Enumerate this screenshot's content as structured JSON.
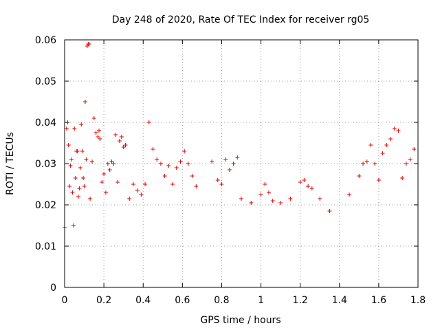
{
  "chart_data": {
    "type": "scatter",
    "title": "Day 248 of 2020, Rate Of TEC Index for receiver rg05",
    "xlabel": "GPS time / hours",
    "ylabel": "ROTI / TECUs",
    "xlim": [
      0,
      1.8
    ],
    "ylim": [
      0,
      0.06
    ],
    "x_ticks": [
      "0",
      "0.2",
      "0.4",
      "0.6",
      "0.8",
      "1",
      "1.2",
      "1.4",
      "1.6",
      "1.8"
    ],
    "y_ticks": [
      "0",
      "0.01",
      "0.02",
      "0.03",
      "0.04",
      "0.05",
      "0.06"
    ],
    "grid": true,
    "marker": "plus",
    "series": [
      {
        "color": "#e00000",
        "points": [
          [
            0.0,
            0.0145
          ],
          [
            0.01,
            0.0385
          ],
          [
            0.015,
            0.04
          ],
          [
            0.02,
            0.0345
          ],
          [
            0.025,
            0.0245
          ],
          [
            0.03,
            0.0295
          ],
          [
            0.035,
            0.031
          ],
          [
            0.04,
            0.023
          ],
          [
            0.045,
            0.015
          ],
          [
            0.05,
            0.0385
          ],
          [
            0.055,
            0.0265
          ],
          [
            0.06,
            0.033
          ],
          [
            0.065,
            0.033
          ],
          [
            0.07,
            0.022
          ],
          [
            0.075,
            0.024
          ],
          [
            0.08,
            0.029
          ],
          [
            0.085,
            0.0395
          ],
          [
            0.09,
            0.033
          ],
          [
            0.095,
            0.0265
          ],
          [
            0.1,
            0.0245
          ],
          [
            0.105,
            0.045
          ],
          [
            0.11,
            0.031
          ],
          [
            0.115,
            0.0585
          ],
          [
            0.12,
            0.059
          ],
          [
            0.125,
            0.059
          ],
          [
            0.13,
            0.0215
          ],
          [
            0.14,
            0.0305
          ],
          [
            0.15,
            0.041
          ],
          [
            0.16,
            0.0375
          ],
          [
            0.17,
            0.0365
          ],
          [
            0.175,
            0.038
          ],
          [
            0.18,
            0.036
          ],
          [
            0.19,
            0.0255
          ],
          [
            0.2,
            0.0275
          ],
          [
            0.21,
            0.023
          ],
          [
            0.22,
            0.03
          ],
          [
            0.23,
            0.0285
          ],
          [
            0.24,
            0.0305
          ],
          [
            0.25,
            0.03
          ],
          [
            0.26,
            0.037
          ],
          [
            0.27,
            0.0255
          ],
          [
            0.28,
            0.0355
          ],
          [
            0.29,
            0.0365
          ],
          [
            0.3,
            0.034
          ],
          [
            0.31,
            0.0345
          ],
          [
            0.33,
            0.0215
          ],
          [
            0.35,
            0.025
          ],
          [
            0.37,
            0.0235
          ],
          [
            0.39,
            0.0225
          ],
          [
            0.41,
            0.025
          ],
          [
            0.43,
            0.04
          ],
          [
            0.45,
            0.0335
          ],
          [
            0.47,
            0.031
          ],
          [
            0.49,
            0.03
          ],
          [
            0.51,
            0.027
          ],
          [
            0.53,
            0.0295
          ],
          [
            0.55,
            0.025
          ],
          [
            0.57,
            0.029
          ],
          [
            0.59,
            0.0305
          ],
          [
            0.61,
            0.033
          ],
          [
            0.63,
            0.03
          ],
          [
            0.65,
            0.027
          ],
          [
            0.67,
            0.0245
          ],
          [
            0.75,
            0.0305
          ],
          [
            0.78,
            0.026
          ],
          [
            0.8,
            0.025
          ],
          [
            0.82,
            0.031
          ],
          [
            0.84,
            0.0285
          ],
          [
            0.86,
            0.03
          ],
          [
            0.88,
            0.0315
          ],
          [
            0.9,
            0.0215
          ],
          [
            0.95,
            0.0205
          ],
          [
            1.0,
            0.0225
          ],
          [
            1.02,
            0.025
          ],
          [
            1.04,
            0.023
          ],
          [
            1.06,
            0.021
          ],
          [
            1.1,
            0.0205
          ],
          [
            1.15,
            0.0215
          ],
          [
            1.2,
            0.0255
          ],
          [
            1.22,
            0.026
          ],
          [
            1.24,
            0.0245
          ],
          [
            1.26,
            0.024
          ],
          [
            1.3,
            0.0215
          ],
          [
            1.35,
            0.0185
          ],
          [
            1.45,
            0.0225
          ],
          [
            1.5,
            0.027
          ],
          [
            1.52,
            0.03
          ],
          [
            1.54,
            0.0305
          ],
          [
            1.56,
            0.0345
          ],
          [
            1.58,
            0.03
          ],
          [
            1.6,
            0.026
          ],
          [
            1.62,
            0.0325
          ],
          [
            1.64,
            0.0345
          ],
          [
            1.66,
            0.036
          ],
          [
            1.68,
            0.0385
          ],
          [
            1.7,
            0.038
          ],
          [
            1.72,
            0.0265
          ],
          [
            1.74,
            0.03
          ],
          [
            1.76,
            0.031
          ],
          [
            1.78,
            0.0335
          ]
        ]
      }
    ]
  }
}
